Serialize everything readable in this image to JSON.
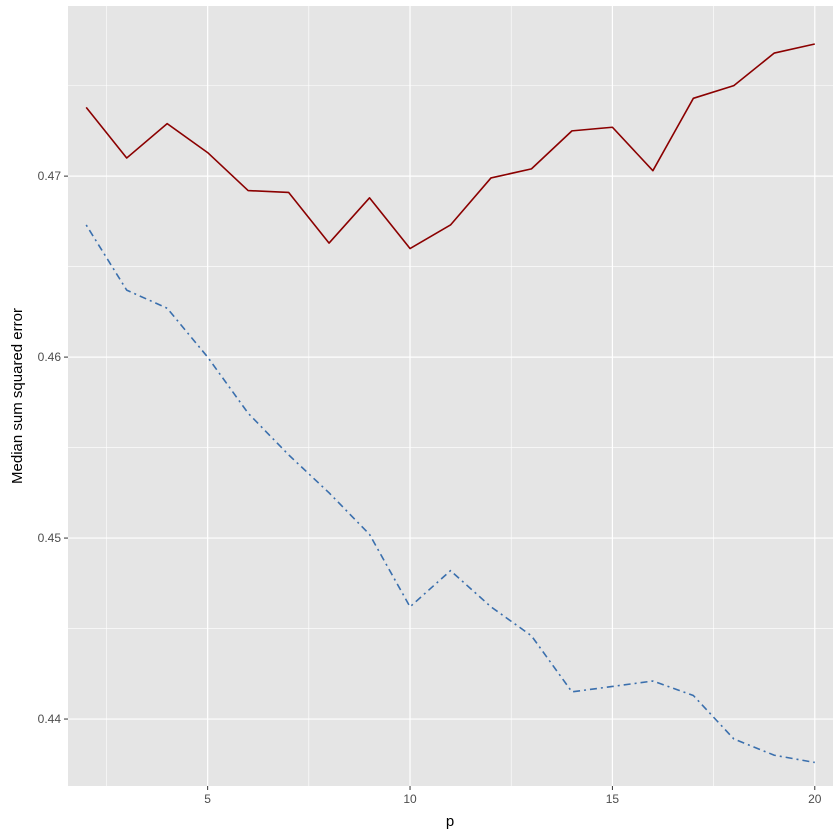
{
  "chart_data": {
    "type": "line",
    "title": "",
    "xlabel": "p",
    "ylabel": "Median sum squared error",
    "xlim": [
      1.55,
      20.45
    ],
    "ylim": [
      0.4363,
      0.4794
    ],
    "x_ticks": [
      5,
      10,
      15,
      20
    ],
    "x_tick_labels": [
      "5",
      "10",
      "15",
      "20"
    ],
    "y_ticks": [
      0.44,
      0.45,
      0.46,
      0.47
    ],
    "y_tick_labels": [
      "0.44",
      "0.45",
      "0.46",
      "0.47"
    ],
    "grid": true,
    "legend": "none",
    "x": [
      2,
      3,
      4,
      5,
      6,
      7,
      8,
      9,
      10,
      11,
      12,
      13,
      14,
      15,
      16,
      17,
      18,
      19,
      20
    ],
    "series": [
      {
        "color": "#8b0000",
        "linestyle": "solid",
        "values": [
          0.4738,
          0.471,
          0.4729,
          0.4713,
          0.4692,
          0.4691,
          0.4663,
          0.4688,
          0.466,
          0.4673,
          0.4699,
          0.4704,
          0.4725,
          0.4727,
          0.4703,
          0.4743,
          0.475,
          0.4768,
          0.4773
        ]
      },
      {
        "color": "#3a6fad",
        "linestyle": "dotdash",
        "values": [
          0.4673,
          0.4637,
          0.4627,
          0.46,
          0.4569,
          0.4546,
          0.4525,
          0.4502,
          0.4462,
          0.4482,
          0.4462,
          0.4446,
          0.4415,
          0.4418,
          0.4421,
          0.4413,
          0.4389,
          0.438,
          0.4376
        ]
      }
    ]
  },
  "colors": {
    "panel_background": "#e5e5e5",
    "grid_line": "#ffffff",
    "tick_text": "#4d4d4d"
  }
}
